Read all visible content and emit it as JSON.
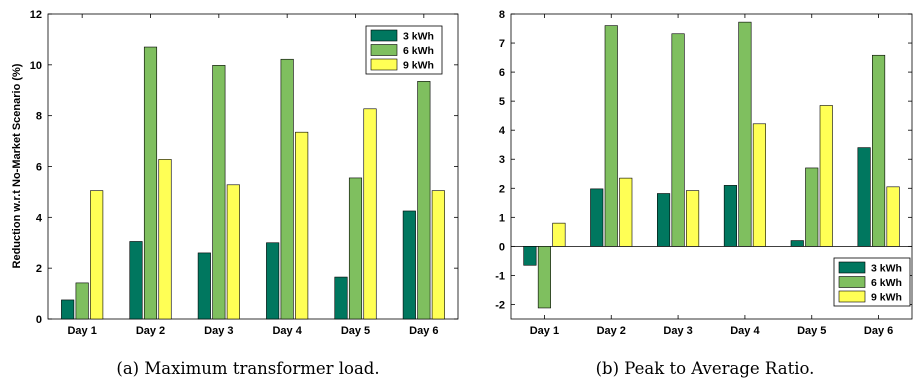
{
  "colors": {
    "3kwh": "#00775f",
    "6kwh": "#7fbf5f",
    "9kwh": "#ffff55"
  },
  "chart_data": [
    {
      "type": "bar",
      "categories": [
        "Day 1",
        "Day 2",
        "Day 3",
        "Day 4",
        "Day 5",
        "Day 6"
      ],
      "series": [
        {
          "name": "3 kWh",
          "values": [
            0.75,
            3.05,
            2.6,
            3.0,
            1.65,
            4.25
          ]
        },
        {
          "name": "6 kWh",
          "values": [
            1.42,
            10.7,
            9.98,
            10.22,
            5.55,
            9.35
          ]
        },
        {
          "name": "9 kWh",
          "values": [
            5.05,
            6.28,
            5.28,
            7.35,
            8.27,
            5.05
          ]
        }
      ],
      "ylabel": "Reduction w.r.t No-Market Scenario (%)",
      "ylim": [
        0,
        12
      ],
      "yticks": [
        0,
        2,
        4,
        6,
        8,
        10,
        12
      ],
      "legend_position": "top-right",
      "caption": "(a) Maximum transformer load."
    },
    {
      "type": "bar",
      "categories": [
        "Day 1",
        "Day 2",
        "Day 3",
        "Day 4",
        "Day 5",
        "Day 6"
      ],
      "series": [
        {
          "name": "3 kWh",
          "values": [
            -0.65,
            1.98,
            1.82,
            2.1,
            0.2,
            3.4
          ]
        },
        {
          "name": "6 kWh",
          "values": [
            -2.12,
            7.6,
            7.32,
            7.72,
            2.7,
            6.58
          ]
        },
        {
          "name": "9 kWh",
          "values": [
            0.8,
            2.35,
            1.92,
            4.22,
            4.85,
            2.05
          ]
        }
      ],
      "ylabel": "",
      "ylim": [
        -2.5,
        8
      ],
      "yticks": [
        -2,
        -1,
        0,
        1,
        2,
        3,
        4,
        5,
        6,
        7,
        8
      ],
      "legend_position": "bottom-right",
      "caption": "(b) Peak to Average Ratio."
    }
  ]
}
